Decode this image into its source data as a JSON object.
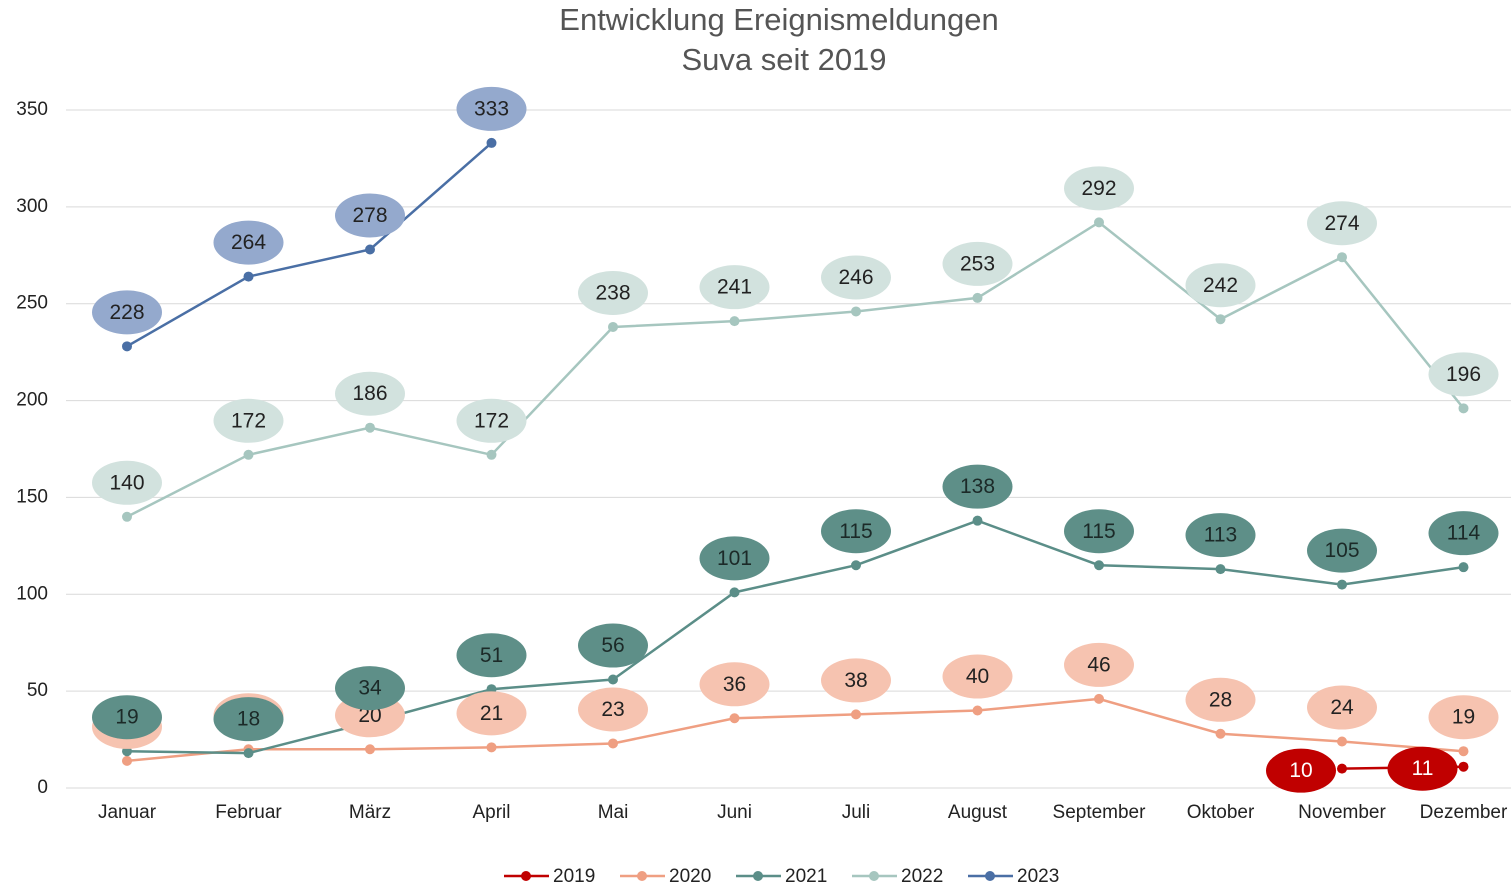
{
  "chart_data": {
    "type": "line",
    "title": [
      "Entwicklung Ereignismeldungen",
      "Suva seit 2019"
    ],
    "categories": [
      "Januar",
      "Februar",
      "März",
      "April",
      "Mai",
      "Juni",
      "Juli",
      "August",
      "September",
      "Oktober",
      "November",
      "Dezember"
    ],
    "series": [
      {
        "name": "2019",
        "color": "#c00000",
        "label_fill": "#c00000",
        "label_text_color": "#ffffff",
        "values": [
          null,
          null,
          null,
          null,
          null,
          null,
          null,
          null,
          null,
          null,
          10,
          11
        ]
      },
      {
        "name": "2020",
        "color": "#ef9f82",
        "label_fill": "#f6c3b0",
        "label_text_color": "#222222",
        "values": [
          14,
          20,
          20,
          21,
          23,
          36,
          38,
          40,
          46,
          28,
          24,
          19
        ]
      },
      {
        "name": "2021",
        "color": "#5b8e88",
        "label_fill": "#5e8f88",
        "label_text_color": "#1c2a28",
        "values": [
          19,
          18,
          34,
          51,
          56,
          101,
          115,
          138,
          115,
          113,
          105,
          114
        ]
      },
      {
        "name": "2022",
        "color": "#a6c6bf",
        "label_fill": "#d2e2de",
        "label_text_color": "#222222",
        "values": [
          140,
          172,
          186,
          172,
          238,
          241,
          246,
          253,
          292,
          242,
          274,
          196
        ]
      },
      {
        "name": "2023",
        "color": "#4a6fa5",
        "label_fill": "#94a9cd",
        "label_text_color": "#222222",
        "values": [
          228,
          264,
          278,
          333,
          null,
          null,
          null,
          null,
          null,
          null,
          null,
          null
        ]
      }
    ],
    "ylim": [
      0,
      350
    ],
    "yticks": [
      0,
      50,
      100,
      150,
      200,
      250,
      300,
      350
    ],
    "grid": true,
    "legend": "bottom"
  }
}
